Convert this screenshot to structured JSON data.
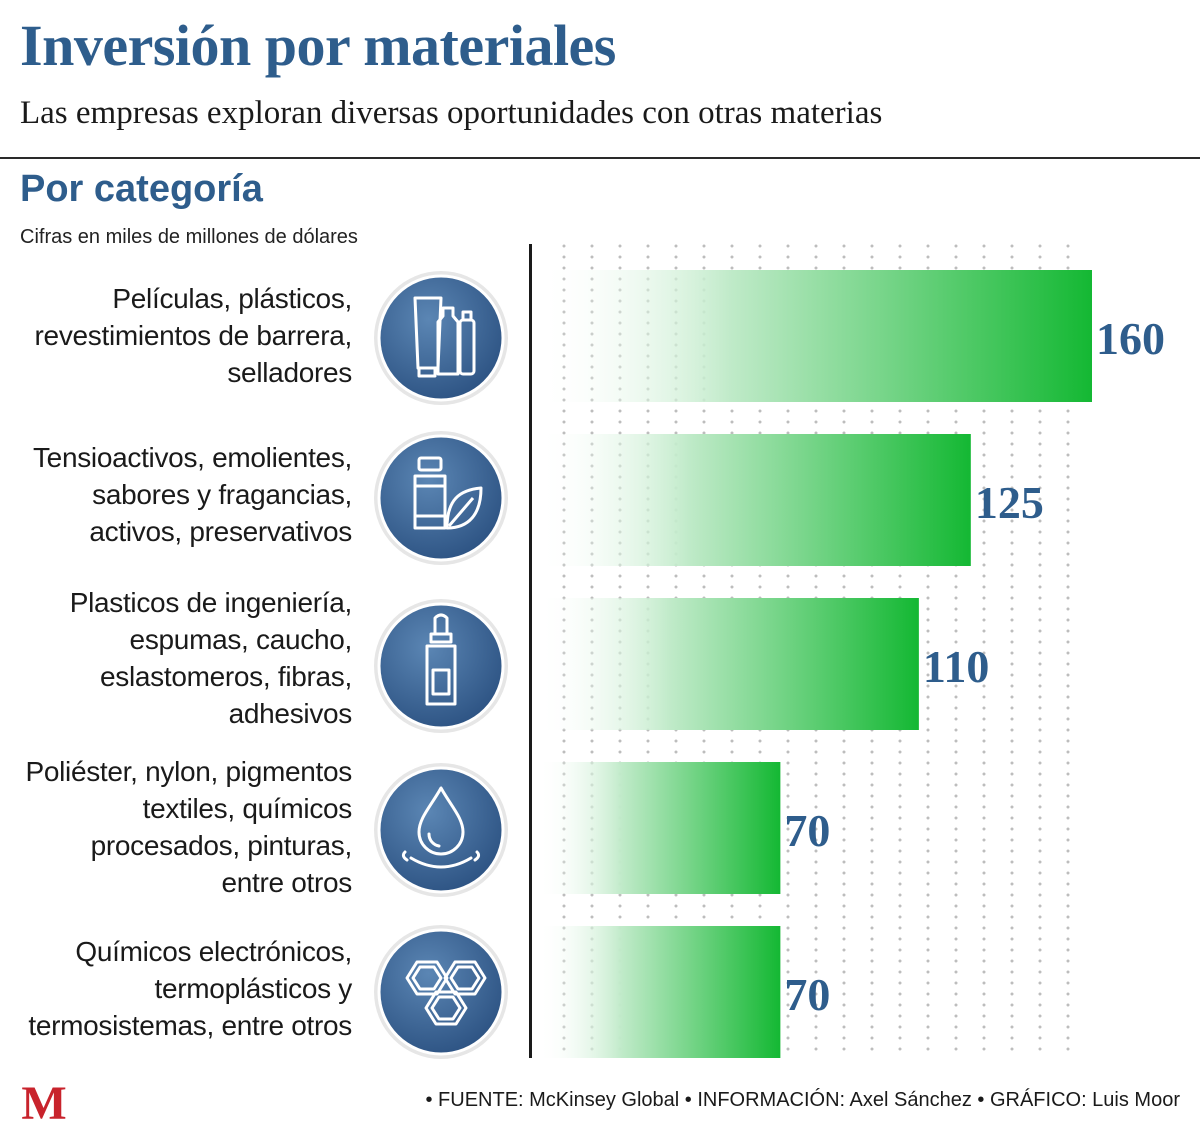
{
  "header": {
    "title": "Inversión por materiales",
    "subtitle": "Las empresas exploran diversas oportunidades con otras materias"
  },
  "section": {
    "title": "Por categoría",
    "units": "Cifras en miles de millones de dólares"
  },
  "chart_data": {
    "type": "bar",
    "orientation": "horizontal",
    "title": "Por categoría",
    "subtitle": "Cifras en miles de millones de dólares",
    "categories": [
      "Películas, plásticos,\nrevestimientos de barrera,\nselladores",
      "Tensioactivos, emolientes,\nsabores y fragancias,\nactivos, preservativos",
      "Plasticos de ingeniería,\nespumas, caucho,\neslastomeros, fibras,\nadhesivos",
      "Poliéster, nylon, pigmentos\ntextiles, químicos\nprocesados, pinturas,\nentre otros",
      "Químicos electrónicos,\ntermoplásticos y\ntermosistemas, entre otros"
    ],
    "values": [
      160,
      125,
      110,
      70,
      70
    ],
    "value_labels": [
      "160",
      "125",
      "110",
      "70",
      "70"
    ],
    "xlim": [
      0,
      160
    ],
    "grid": true,
    "legend": "none",
    "bar_color_start": "#ffffff",
    "bar_color_end": "#14b833",
    "value_label_color": "#2e5d8c",
    "icons": [
      "cosmetic-tubes-icon",
      "bottle-leaf-icon",
      "dropper-bottle-icon",
      "water-drop-icon",
      "hexagon-molecule-icon"
    ]
  },
  "footer": {
    "credits": "• FUENTE: McKinsey Global • INFORMACIÓN: Axel Sánchez • GRÁFICO: Luis Moor"
  },
  "brand": {
    "logo_letter": "M",
    "logo_color": "#c8232c",
    "icon_circle_color": "#3d6694",
    "icon_ring_color": "#ffffff"
  }
}
